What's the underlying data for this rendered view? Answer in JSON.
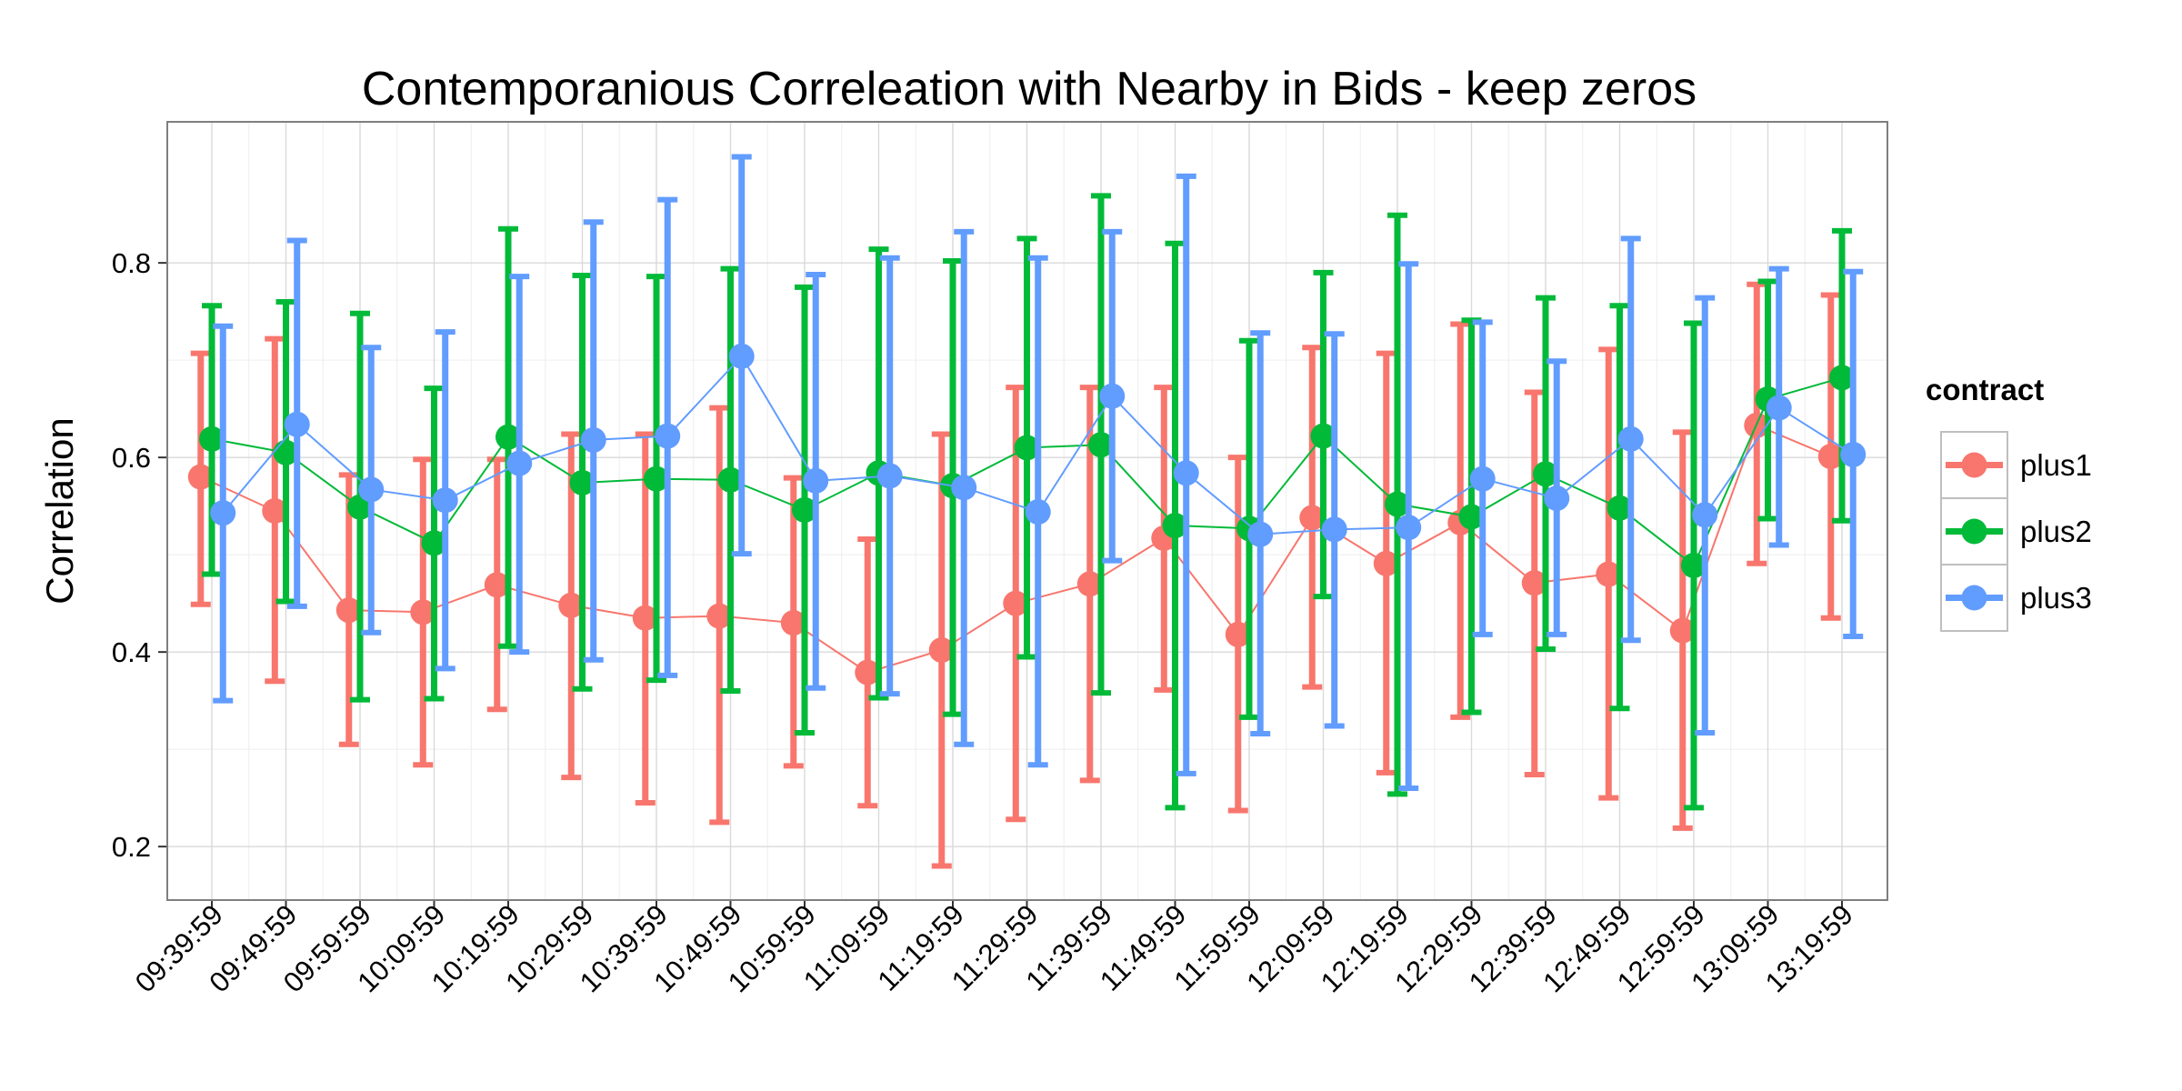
{
  "chart_data": {
    "type": "line",
    "title": "Contemporanious Correleation with Nearby in Bids - keep zeros",
    "xlabel": "",
    "ylabel": "Correlation",
    "x": [
      "09:39:59",
      "09:49:59",
      "09:59:59",
      "10:09:59",
      "10:19:59",
      "10:29:59",
      "10:39:59",
      "10:49:59",
      "10:59:59",
      "11:09:59",
      "11:19:59",
      "11:29:59",
      "11:39:59",
      "11:49:59",
      "11:59:59",
      "12:09:59",
      "12:19:59",
      "12:29:59",
      "12:39:59",
      "12:49:59",
      "12:59:59",
      "13:09:59",
      "13:19:59"
    ],
    "y_ticks": [
      0.2,
      0.4,
      0.6,
      0.8
    ],
    "y_tick_labels": [
      "0.2",
      "0.4",
      "0.6",
      "0.8"
    ],
    "ylim": [
      0.145,
      0.945
    ],
    "grid": true,
    "error_bars": true,
    "legend": {
      "title": "contract",
      "position": "right"
    },
    "series": [
      {
        "name": "plus1",
        "color": "#F8766D",
        "values": [
          0.58,
          0.545,
          0.443,
          0.441,
          0.469,
          0.448,
          0.435,
          0.437,
          0.43,
          0.379,
          0.402,
          0.45,
          0.47,
          0.517,
          0.418,
          0.538,
          0.491,
          0.533,
          0.471,
          0.48,
          0.422,
          0.633,
          0.601
        ],
        "lower": [
          0.449,
          0.37,
          0.305,
          0.284,
          0.341,
          0.271,
          0.245,
          0.225,
          0.283,
          0.242,
          0.18,
          0.228,
          0.268,
          0.361,
          0.237,
          0.364,
          0.276,
          0.333,
          0.274,
          0.25,
          0.219,
          0.491,
          0.435
        ],
        "upper": [
          0.707,
          0.722,
          0.582,
          0.598,
          0.598,
          0.624,
          0.624,
          0.651,
          0.579,
          0.516,
          0.624,
          0.672,
          0.672,
          0.672,
          0.6,
          0.713,
          0.707,
          0.737,
          0.667,
          0.711,
          0.626,
          0.778,
          0.767
        ]
      },
      {
        "name": "plus2",
        "color": "#00BA38",
        "values": [
          0.619,
          0.605,
          0.549,
          0.512,
          0.621,
          0.574,
          0.578,
          0.577,
          0.546,
          0.584,
          0.571,
          0.61,
          0.613,
          0.53,
          0.527,
          0.622,
          0.552,
          0.539,
          0.583,
          0.548,
          0.489,
          0.66,
          0.682
        ],
        "lower": [
          0.48,
          0.452,
          0.351,
          0.352,
          0.406,
          0.362,
          0.371,
          0.36,
          0.317,
          0.353,
          0.336,
          0.395,
          0.358,
          0.24,
          0.333,
          0.457,
          0.254,
          0.338,
          0.403,
          0.342,
          0.24,
          0.537,
          0.535
        ],
        "upper": [
          0.756,
          0.76,
          0.748,
          0.671,
          0.835,
          0.787,
          0.786,
          0.794,
          0.775,
          0.814,
          0.802,
          0.825,
          0.869,
          0.82,
          0.72,
          0.79,
          0.849,
          0.741,
          0.764,
          0.756,
          0.738,
          0.781,
          0.833
        ]
      },
      {
        "name": "plus3",
        "color": "#619CFF",
        "values": [
          0.543,
          0.634,
          0.567,
          0.556,
          0.594,
          0.618,
          0.622,
          0.704,
          0.576,
          0.581,
          0.569,
          0.544,
          0.663,
          0.584,
          0.521,
          0.526,
          0.528,
          0.578,
          0.558,
          0.619,
          0.541,
          0.651,
          0.603
        ],
        "lower": [
          0.35,
          0.447,
          0.42,
          0.383,
          0.4,
          0.392,
          0.376,
          0.501,
          0.363,
          0.357,
          0.305,
          0.284,
          0.494,
          0.275,
          0.316,
          0.324,
          0.26,
          0.418,
          0.418,
          0.412,
          0.317,
          0.51,
          0.416
        ],
        "upper": [
          0.735,
          0.823,
          0.713,
          0.729,
          0.786,
          0.842,
          0.865,
          0.909,
          0.788,
          0.805,
          0.832,
          0.805,
          0.832,
          0.889,
          0.728,
          0.727,
          0.799,
          0.739,
          0.699,
          0.825,
          0.764,
          0.794,
          0.791
        ]
      }
    ]
  }
}
